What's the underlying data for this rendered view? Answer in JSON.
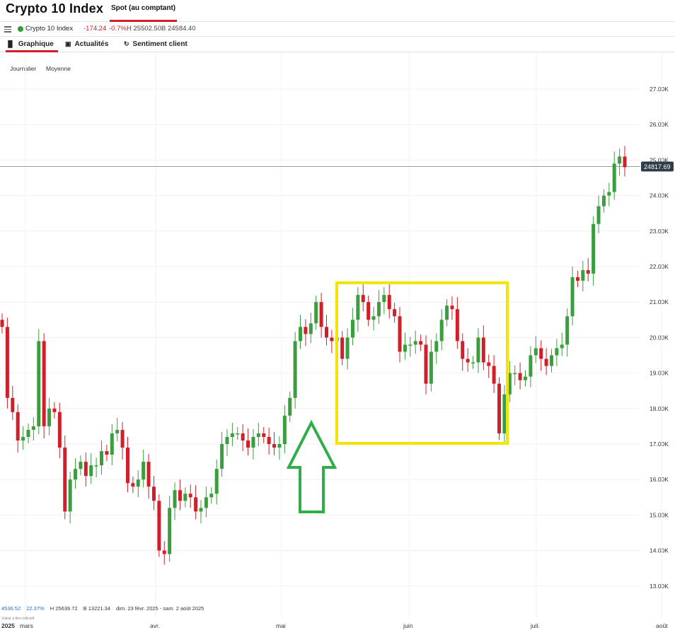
{
  "header": {
    "title": "Crypto 10 Index",
    "active_tab": "Spot (au comptant)"
  },
  "infobar": {
    "instrument": "Crypto 10 Index",
    "change": "-174.24",
    "change_pct": "-0.7%",
    "high": "H 25502.50",
    "low": "B 24584.40"
  },
  "tabs": [
    {
      "label": "Graphique",
      "icon": "chart-bars-icon"
    },
    {
      "label": "Actualités",
      "icon": "news-icon"
    },
    {
      "label": "Sentiment client",
      "icon": "refresh-icon"
    }
  ],
  "timeframe": {
    "interval": "Journalier",
    "type": "Moyenne"
  },
  "price_tag": "24817.69",
  "stats": {
    "range": "4536.52",
    "range_pct": "22.37%",
    "high": "H 25639.72",
    "low": "B 13221.34",
    "period": "dim. 23 févr. 2025 - sam. 2 août 2025",
    "note": "Valeur à titre indicatif"
  },
  "colors": {
    "up": "#3a9e3e",
    "down": "#d11f2a",
    "highlight_box": "#f5e400",
    "arrow": "#2fae4a"
  },
  "chart_data": {
    "type": "candlestick",
    "x_labels": [
      "2025",
      "mars",
      "avr.",
      "mai",
      "juin",
      "juil.",
      "août"
    ],
    "y_ticks": [
      "13.00K",
      "14.00K",
      "15.00K",
      "16.00K",
      "17.00K",
      "18.00K",
      "19.00K",
      "20.00K",
      "21.00K",
      "22.00K",
      "23.00K",
      "24.00K",
      "25.00K",
      "26.00K",
      "27.00K"
    ],
    "ylim": [
      12500,
      28000
    ],
    "current_price": 24817.69,
    "grid": true,
    "closes": [
      20300,
      18300,
      17900,
      17100,
      17200,
      17400,
      17500,
      19900,
      17500,
      18000,
      17900,
      16900,
      15100,
      16000,
      16300,
      16500,
      16100,
      16400,
      16400,
      16800,
      16700,
      17300,
      17400,
      16900,
      15900,
      15800,
      16000,
      16500,
      15800,
      15400,
      14000,
      13900,
      15200,
      15700,
      15400,
      15600,
      15500,
      15100,
      15200,
      15500,
      15600,
      16300,
      17000,
      17200,
      17300,
      17300,
      17100,
      16900,
      17200,
      17300,
      17200,
      17000,
      16900,
      17000,
      17800,
      18300,
      19900,
      20300,
      20100,
      20400,
      21000,
      20300,
      20000,
      19900,
      20000,
      19400,
      20000,
      20500,
      21200,
      21000,
      20500,
      20600,
      21000,
      21200,
      20800,
      20600,
      19600,
      19800,
      19800,
      19900,
      19800,
      18700,
      19600,
      19900,
      20500,
      20900,
      20800,
      19900,
      19400,
      19300,
      19300,
      20000,
      19300,
      19200,
      18700,
      17300,
      18400,
      19000,
      19000,
      18800,
      18900,
      19500,
      19700,
      19400,
      19200,
      19500,
      19700,
      19800,
      20600,
      21700,
      21600,
      21900,
      21800,
      23200,
      23700,
      24000,
      24100,
      24900,
      25100,
      24800
    ],
    "markers": {
      "arrow": "green up arrow at start of mai",
      "box": "yellow rectangle mai-juin"
    }
  }
}
